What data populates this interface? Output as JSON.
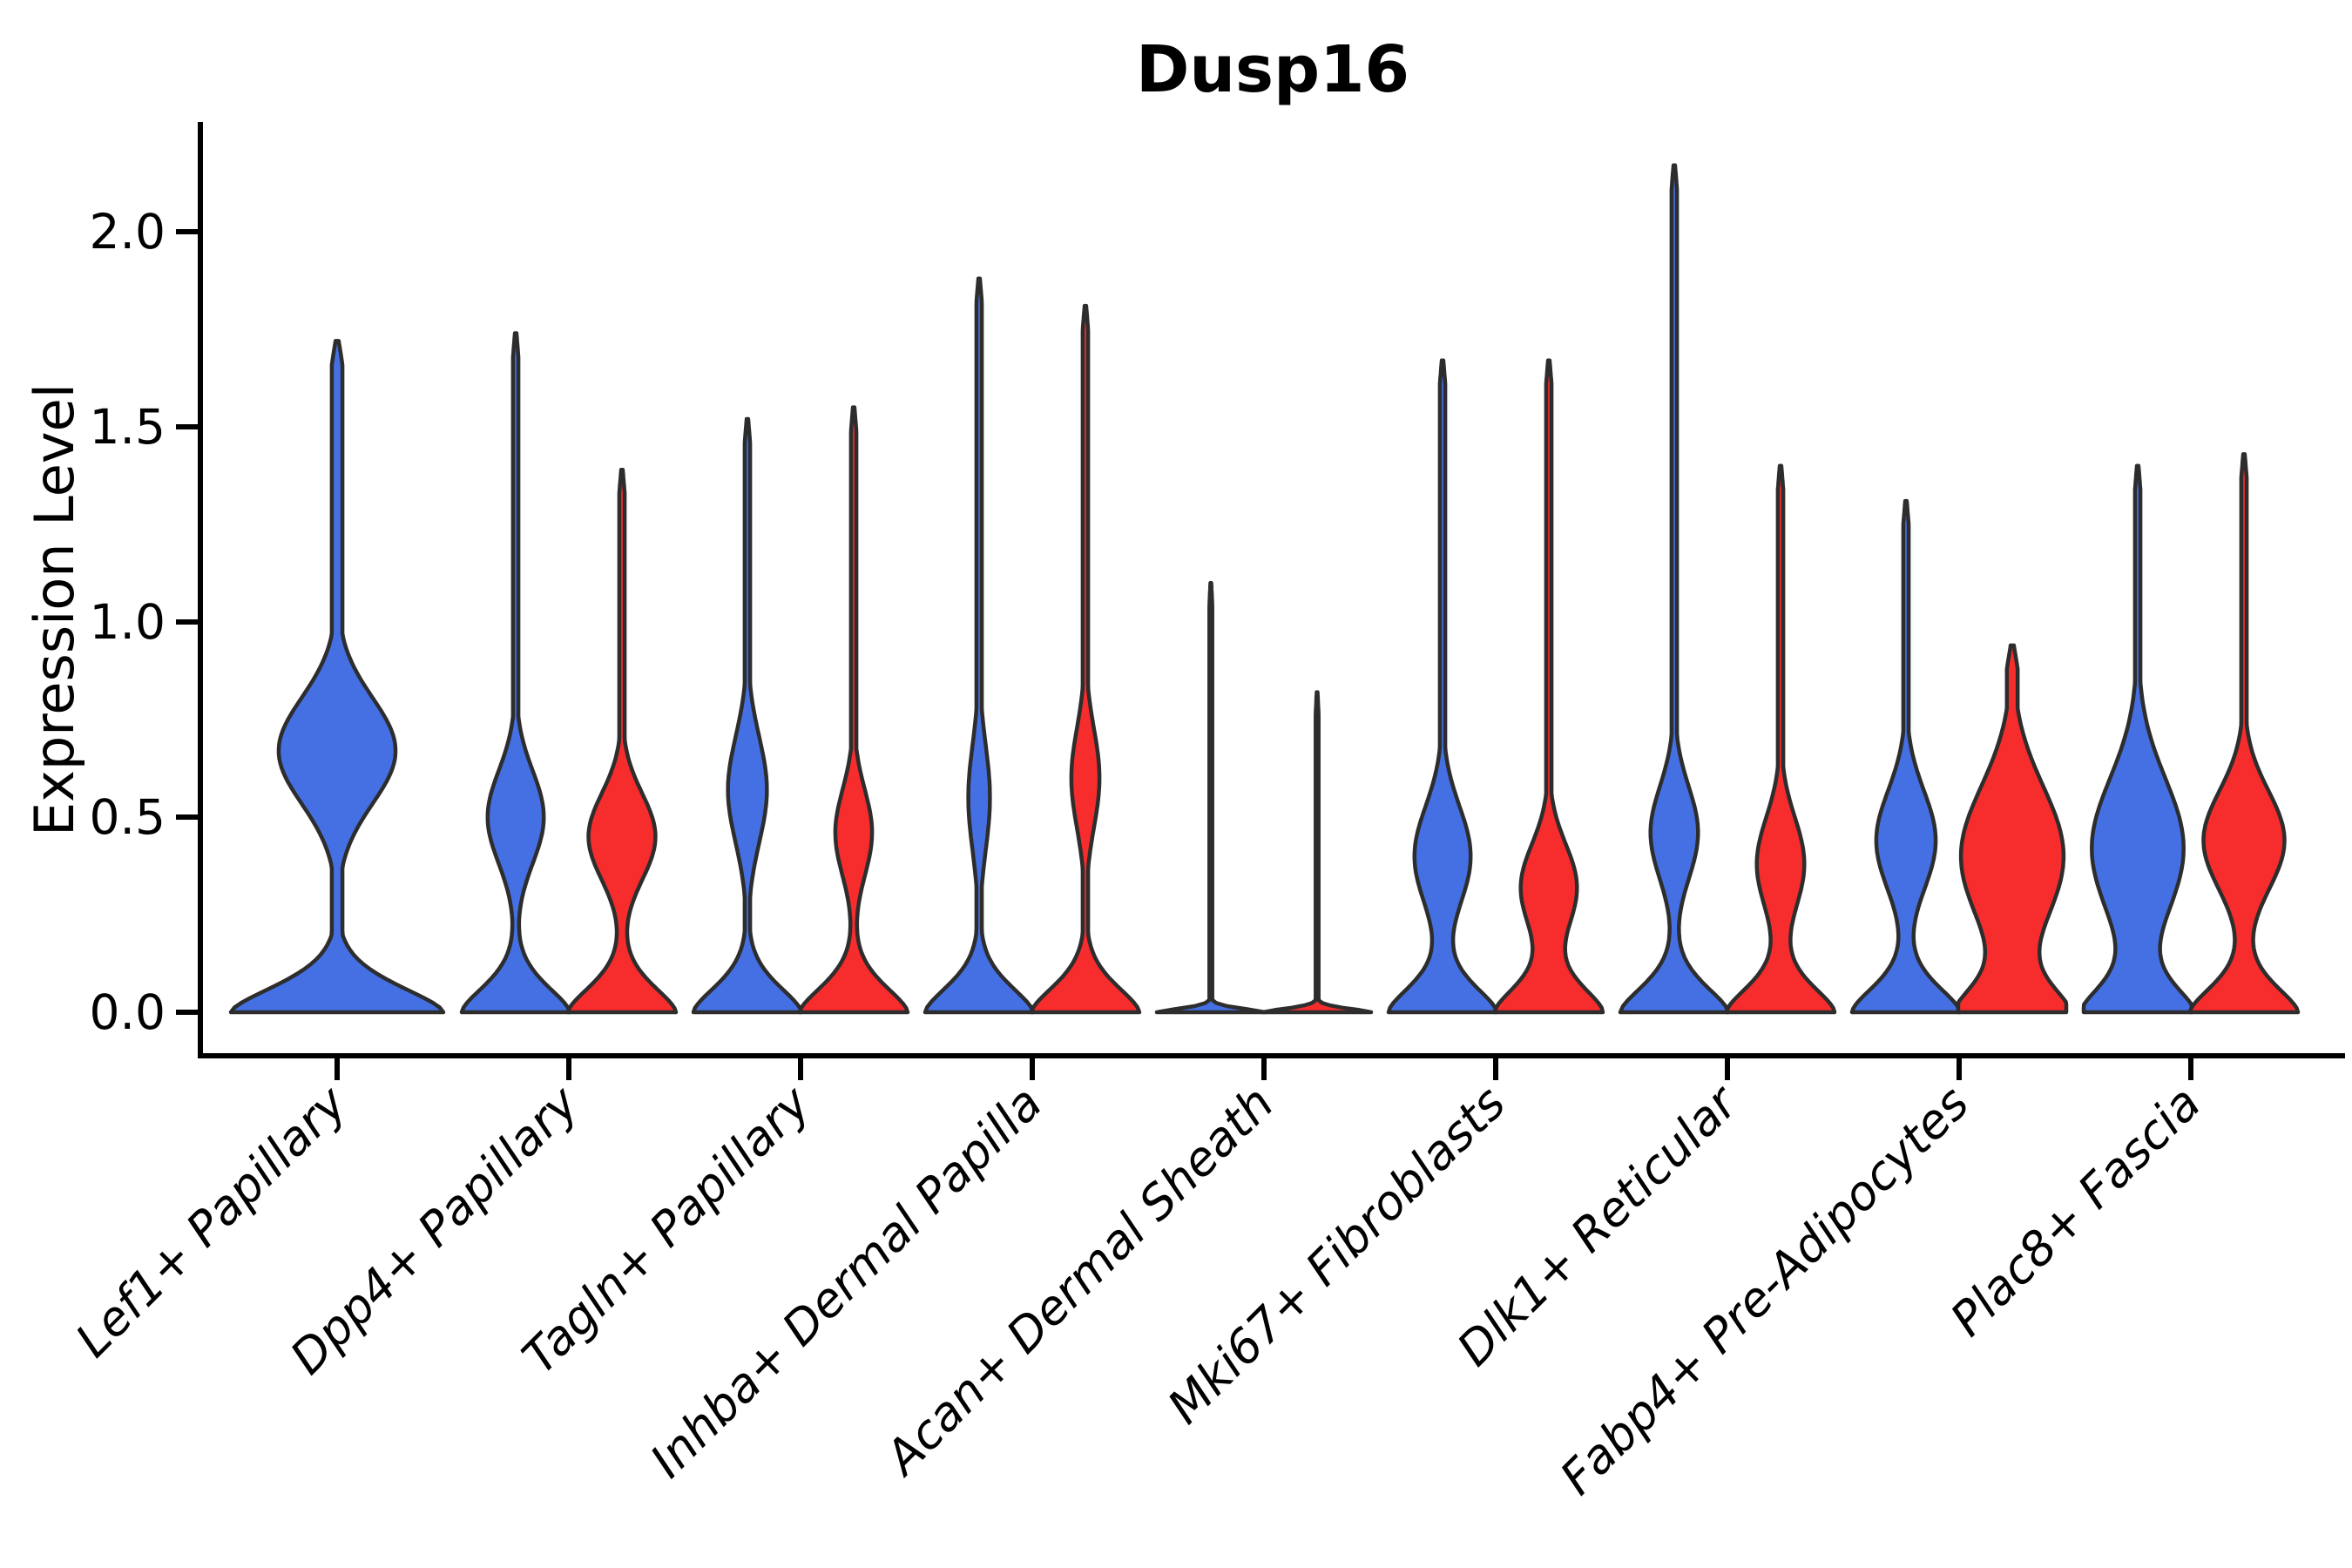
{
  "title": "Dusp16",
  "y_axis": {
    "label": "Expression Level",
    "ticks": [
      "2.0",
      "1.5",
      "1.0",
      "0.5",
      "0.0"
    ],
    "tick_values": [
      2.0,
      1.5,
      1.0,
      0.5,
      0.0
    ]
  },
  "x_axis": {
    "categories": [
      "Lef1+ Papillary",
      "Dpp4+ Papillary",
      "Tagln+ Papillary",
      "Inhba+ Dermal Papilla",
      "Acan+ Dermal Sheath",
      "Mki67+ Fibroblasts",
      "Dlk1+ Reticular",
      "Fabp4+ Pre-Adipocytes",
      "Plac8+ Fascia"
    ]
  },
  "colors": {
    "blue": "#4470e4",
    "red": "#f72c2c",
    "outline": "#2d2d2d",
    "axis": "#000000",
    "background": "#ffffff"
  },
  "chart_data": {
    "type": "violin",
    "title": "Dusp16",
    "xlabel": "",
    "ylabel": "Expression Level",
    "ylim": [
      0,
      2.3
    ],
    "y_ticks": [
      0.0,
      0.5,
      1.0,
      1.5,
      2.0
    ],
    "grid": false,
    "legend": "none",
    "categories": [
      "Lef1+ Papillary",
      "Dpp4+ Papillary",
      "Tagln+ Papillary",
      "Inhba+ Dermal Papilla",
      "Acan+ Dermal Sheath",
      "Mki67+ Fibroblasts",
      "Dlk1+ Reticular",
      "Fabp4+ Pre-Adipocytes",
      "Plac8+ Fascia"
    ],
    "series": [
      {
        "name": "blue",
        "color": "#4470e4",
        "max_expression": [
          1.72,
          1.74,
          1.52,
          1.88,
          1.1,
          1.67,
          2.17,
          1.31,
          1.4
        ]
      },
      {
        "name": "red",
        "color": "#f72c2c",
        "max_expression": [
          null,
          1.39,
          1.55,
          1.81,
          0.82,
          1.67,
          1.4,
          0.94,
          1.43
        ]
      }
    ],
    "violins": [
      {
        "group": 0,
        "side": "center",
        "color": "blue",
        "max": 1.72,
        "bulge_center": 0.67,
        "bulge_spread": 0.32,
        "bulge_width": 0.55
      },
      {
        "group": 1,
        "side": "left",
        "color": "blue",
        "max": 1.74,
        "bulge_center": 0.5,
        "bulge_spread": 0.28,
        "bulge_width": 0.52
      },
      {
        "group": 1,
        "side": "right",
        "color": "red",
        "max": 1.39,
        "bulge_center": 0.45,
        "bulge_spread": 0.26,
        "bulge_width": 0.62
      },
      {
        "group": 2,
        "side": "left",
        "color": "blue",
        "max": 1.52,
        "bulge_center": 0.57,
        "bulge_spread": 0.32,
        "bulge_width": 0.36
      },
      {
        "group": 2,
        "side": "right",
        "color": "red",
        "max": 1.55,
        "bulge_center": 0.46,
        "bulge_spread": 0.26,
        "bulge_width": 0.34
      },
      {
        "group": 3,
        "side": "left",
        "color": "blue",
        "max": 1.88,
        "bulge_center": 0.55,
        "bulge_spread": 0.32,
        "bulge_width": 0.2
      },
      {
        "group": 3,
        "side": "right",
        "color": "red",
        "max": 1.81,
        "bulge_center": 0.6,
        "bulge_spread": 0.3,
        "bulge_width": 0.26
      },
      {
        "group": 4,
        "side": "left",
        "color": "blue",
        "max": 1.1,
        "bulge_width": 0,
        "stem_width": 0.028,
        "base_spread": 0.014
      },
      {
        "group": 4,
        "side": "right",
        "color": "red",
        "max": 0.82,
        "bulge_width": 0,
        "stem_width": 0.028,
        "base_spread": 0.014
      },
      {
        "group": 5,
        "side": "left",
        "color": "blue",
        "max": 1.67,
        "bulge_center": 0.4,
        "bulge_spread": 0.3,
        "bulge_width": 0.52
      },
      {
        "group": 5,
        "side": "right",
        "color": "red",
        "max": 1.67,
        "bulge_center": 0.32,
        "bulge_spread": 0.26,
        "bulge_width": 0.52
      },
      {
        "group": 6,
        "side": "left",
        "color": "blue",
        "max": 2.17,
        "bulge_center": 0.46,
        "bulge_spread": 0.28,
        "bulge_width": 0.44
      },
      {
        "group": 6,
        "side": "right",
        "color": "red",
        "max": 1.4,
        "bulge_center": 0.38,
        "bulge_spread": 0.28,
        "bulge_width": 0.44
      },
      {
        "group": 7,
        "side": "left",
        "color": "blue",
        "max": 1.31,
        "bulge_center": 0.44,
        "bulge_spread": 0.3,
        "bulge_width": 0.55
      },
      {
        "group": 7,
        "side": "right",
        "color": "red",
        "max": 0.94,
        "bulge_center": 0.4,
        "bulge_spread": 0.42,
        "bulge_width": 0.95,
        "stem_width": 0.1
      },
      {
        "group": 8,
        "side": "left",
        "color": "blue",
        "max": 1.4,
        "bulge_center": 0.42,
        "bulge_spread": 0.42,
        "bulge_width": 0.85
      },
      {
        "group": 8,
        "side": "right",
        "color": "red",
        "max": 1.43,
        "bulge_center": 0.44,
        "bulge_spread": 0.3,
        "bulge_width": 0.75
      }
    ]
  }
}
